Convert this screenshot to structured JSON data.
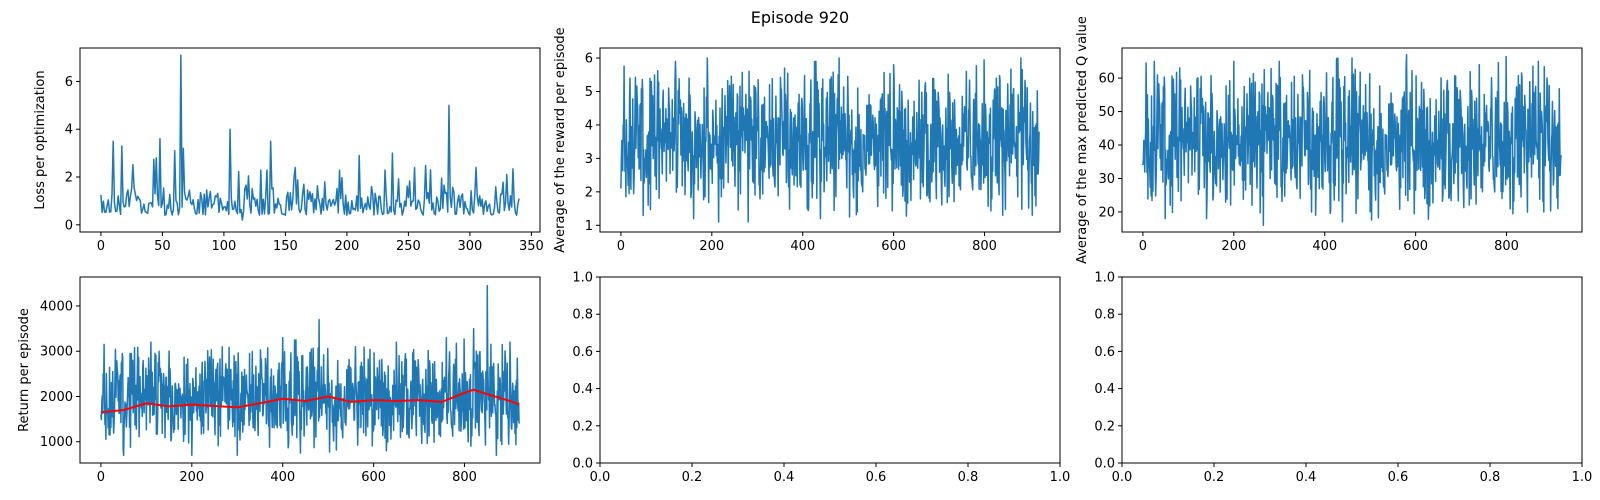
{
  "figure": {
    "title": "Episode 920"
  },
  "colors": {
    "series": "#1f77b4",
    "moving_average": "#ff0000",
    "axis": "#000000",
    "background": "#ffffff"
  },
  "chart_data": [
    {
      "id": "loss",
      "type": "line",
      "title": "",
      "xlabel": "",
      "ylabel": "Loss per optimization",
      "xlim": [
        -17,
        357
      ],
      "ylim": [
        -0.3,
        7.4
      ],
      "xticks": [
        0,
        50,
        100,
        150,
        200,
        250,
        300,
        350
      ],
      "yticks": [
        0,
        2,
        4,
        6
      ],
      "grid": false,
      "series": [
        {
          "color": "#1f77b4",
          "n": 341,
          "approx_mean": 1.0,
          "approx_range": [
            0.15,
            7.1
          ],
          "sample_points": [
            [
              0,
              1.25
            ],
            [
              10,
              3.5
            ],
            [
              17,
              3.3
            ],
            [
              45,
              2.8
            ],
            [
              48,
              3.6
            ],
            [
              60,
              3.1
            ],
            [
              65,
              7.1
            ],
            [
              67,
              3.2
            ],
            [
              105,
              4.0
            ],
            [
              115,
              0.2
            ],
            [
              138,
              3.5
            ],
            [
              165,
              1.7
            ],
            [
              180,
              1.1
            ],
            [
              210,
              2.9
            ],
            [
              237,
              3.0
            ],
            [
              255,
              2.4
            ],
            [
              268,
              2.3
            ],
            [
              283,
              5.0
            ],
            [
              305,
              2.4
            ],
            [
              330,
              2.1
            ],
            [
              340,
              1.1
            ]
          ]
        }
      ]
    },
    {
      "id": "reward",
      "type": "line",
      "title": "",
      "xlabel": "",
      "ylabel": "Average of the reward per episode",
      "xlim": [
        -46,
        966
      ],
      "ylim": [
        0.8,
        6.3
      ],
      "xticks": [
        0,
        200,
        400,
        600,
        800
      ],
      "yticks": [
        1,
        2,
        3,
        4,
        5,
        6
      ],
      "grid": false,
      "series": [
        {
          "color": "#1f77b4",
          "n": 921,
          "approx_mean": 3.7,
          "approx_range": [
            1.1,
            6.0
          ],
          "sample_points": [
            [
              0,
              2.1
            ],
            [
              5,
              4.0
            ],
            [
              20,
              5.4
            ],
            [
              60,
              1.6
            ],
            [
              120,
              5.9
            ],
            [
              160,
              1.2
            ],
            [
              190,
              6.0
            ],
            [
              215,
              1.1
            ],
            [
              280,
              1.1
            ],
            [
              360,
              5.7
            ],
            [
              410,
              1.5
            ],
            [
              480,
              6.0
            ],
            [
              520,
              1.4
            ],
            [
              600,
              5.8
            ],
            [
              680,
              1.7
            ],
            [
              760,
              5.6
            ],
            [
              840,
              1.3
            ],
            [
              880,
              6.0
            ],
            [
              905,
              1.3
            ],
            [
              920,
              3.8
            ]
          ]
        }
      ]
    },
    {
      "id": "qvalue",
      "type": "line",
      "title": "",
      "xlabel": "",
      "ylabel": "Average of the max predicted Q value",
      "xlim": [
        -46,
        966
      ],
      "ylim": [
        14,
        69
      ],
      "xticks": [
        0,
        200,
        400,
        600,
        800
      ],
      "yticks": [
        20,
        30,
        40,
        50,
        60
      ],
      "grid": false,
      "series": [
        {
          "color": "#1f77b4",
          "n": 921,
          "approx_mean": 44,
          "approx_range": [
            16,
            67
          ],
          "sample_points": [
            [
              0,
              34
            ],
            [
              10,
              55
            ],
            [
              25,
              65
            ],
            [
              60,
              22
            ],
            [
              140,
              18
            ],
            [
              200,
              65
            ],
            [
              240,
              22
            ],
            [
              265,
              16
            ],
            [
              300,
              65
            ],
            [
              380,
              19
            ],
            [
              460,
              66
            ],
            [
              500,
              20
            ],
            [
              580,
              67
            ],
            [
              660,
              25
            ],
            [
              740,
              64
            ],
            [
              790,
              24
            ],
            [
              870,
              65
            ],
            [
              920,
              37
            ]
          ]
        }
      ]
    },
    {
      "id": "return",
      "type": "line",
      "title": "",
      "xlabel": "",
      "ylabel": "Return per episode",
      "xlim": [
        -46,
        966
      ],
      "ylim": [
        530,
        4640
      ],
      "xticks": [
        0,
        200,
        400,
        600,
        800
      ],
      "yticks": [
        1000,
        2000,
        3000,
        4000
      ],
      "grid": false,
      "series": [
        {
          "color": "#1f77b4",
          "n": 921,
          "approx_mean": 1880,
          "approx_range": [
            700,
            4450
          ],
          "sample_points": [
            [
              0,
              1600
            ],
            [
              5,
              2500
            ],
            [
              50,
              700
            ],
            [
              110,
              3200
            ],
            [
              200,
              700
            ],
            [
              300,
              700
            ],
            [
              400,
              3300
            ],
            [
              480,
              3700
            ],
            [
              560,
              3100
            ],
            [
              650,
              3200
            ],
            [
              760,
              3300
            ],
            [
              820,
              3500
            ],
            [
              850,
              4450
            ],
            [
              870,
              700
            ],
            [
              900,
              3200
            ],
            [
              920,
              1400
            ]
          ]
        },
        {
          "color": "#ff0000",
          "kind": "moving_average",
          "points": [
            [
              0,
              1650
            ],
            [
              50,
              1700
            ],
            [
              100,
              1850
            ],
            [
              150,
              1780
            ],
            [
              200,
              1820
            ],
            [
              250,
              1790
            ],
            [
              300,
              1760
            ],
            [
              350,
              1850
            ],
            [
              400,
              1950
            ],
            [
              450,
              1900
            ],
            [
              500,
              2000
            ],
            [
              550,
              1880
            ],
            [
              600,
              1920
            ],
            [
              650,
              1900
            ],
            [
              700,
              1920
            ],
            [
              750,
              1880
            ],
            [
              800,
              2080
            ],
            [
              820,
              2150
            ],
            [
              850,
              2050
            ],
            [
              900,
              1900
            ],
            [
              920,
              1820
            ]
          ]
        }
      ]
    },
    {
      "id": "empty-1",
      "type": "line",
      "title": "",
      "xlabel": "",
      "ylabel": "",
      "xlim": [
        0,
        1
      ],
      "ylim": [
        0,
        1
      ],
      "xticks": [
        0.0,
        0.2,
        0.4,
        0.6,
        0.8,
        1.0
      ],
      "yticks": [
        0.0,
        0.2,
        0.4,
        0.6,
        0.8,
        1.0
      ],
      "tick_labels": [
        "0.0",
        "0.2",
        "0.4",
        "0.6",
        "0.8",
        "1.0"
      ],
      "grid": false,
      "series": []
    },
    {
      "id": "empty-2",
      "type": "line",
      "title": "",
      "xlabel": "",
      "ylabel": "",
      "xlim": [
        0,
        1
      ],
      "ylim": [
        0,
        1
      ],
      "xticks": [
        0.0,
        0.2,
        0.4,
        0.6,
        0.8,
        1.0
      ],
      "yticks": [
        0.0,
        0.2,
        0.4,
        0.6,
        0.8,
        1.0
      ],
      "tick_labels": [
        "0.0",
        "0.2",
        "0.4",
        "0.6",
        "0.8",
        "1.0"
      ],
      "grid": false,
      "series": []
    }
  ]
}
